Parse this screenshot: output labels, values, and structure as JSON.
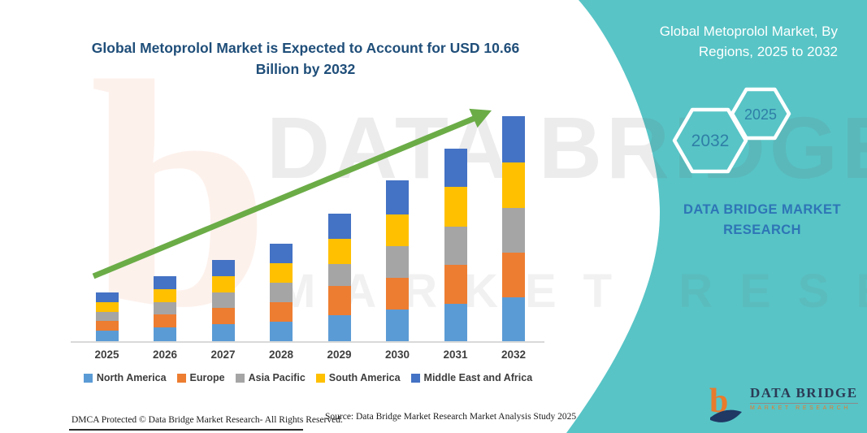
{
  "chart": {
    "title_line1": "Global Metoprolol Market is Expected to Account for USD 10.66",
    "title_line2": "Billion by 2032"
  },
  "chart_data": {
    "type": "bar",
    "stacked": true,
    "title": "Global Metoprolol Market is Expected to Account for USD 10.66 Billion by 2032",
    "unit": "USD billion",
    "categories": [
      "2025",
      "2026",
      "2027",
      "2028",
      "2029",
      "2030",
      "2031",
      "2032"
    ],
    "series": [
      {
        "name": "North America",
        "color": "#5B9BD5",
        "values": [
          0.49,
          0.64,
          0.79,
          0.94,
          1.22,
          1.48,
          1.76,
          2.06
        ]
      },
      {
        "name": "Europe",
        "color": "#ED7D31",
        "values": [
          0.46,
          0.61,
          0.77,
          0.92,
          1.41,
          1.5,
          1.86,
          2.12
        ]
      },
      {
        "name": "Asia Pacific",
        "color": "#A5A5A5",
        "values": [
          0.42,
          0.58,
          0.74,
          0.9,
          1.03,
          1.51,
          1.81,
          2.14
        ]
      },
      {
        "name": "South America",
        "color": "#FFC000",
        "values": [
          0.48,
          0.62,
          0.78,
          0.93,
          1.18,
          1.51,
          1.86,
          2.16
        ]
      },
      {
        "name": "Middle East and Africa",
        "color": "#4472C4",
        "values": [
          0.44,
          0.61,
          0.75,
          0.91,
          1.19,
          1.61,
          1.82,
          2.18
        ]
      }
    ],
    "totals": [
      2.29,
      3.06,
      3.83,
      4.6,
      6.03,
      7.61,
      9.11,
      10.66
    ],
    "xlabel": "",
    "ylabel": "",
    "ylim": [
      0,
      11
    ],
    "grid": false,
    "legend_position": "bottom",
    "annotations": [
      "green upward trend arrow across bar tops"
    ]
  },
  "sidebar": {
    "heading_line1": "Global Metoprolol Market, By",
    "heading_line2": "Regions, 2025 to 2032",
    "hexagons": [
      {
        "label": "2032"
      },
      {
        "label": "2025"
      }
    ],
    "brand_line1": "DATA BRIDGE MARKET",
    "brand_line2": "RESEARCH",
    "logo": {
      "name": "DATA BRIDGE",
      "subtitle": "MARKET RESEARCH"
    }
  },
  "watermark": {
    "monogram": "b",
    "line1": "DATA BRIDGE",
    "line2": "MARKET RESEARCH"
  },
  "footer": {
    "dmca": "DMCA Protected © Data Bridge Market Research-  All Rights Reserved.",
    "source": "Source: Data Bridge Market Research  Market Analysis Study 2025"
  },
  "colors": {
    "teal_panel": "#58C4C6",
    "title_blue": "#1F4E79",
    "arrow_green": "#6BAC47",
    "hexagon_label": "#2F7FA6",
    "brand_blue": "#2E75B6",
    "logo_navy": "#2B3A55",
    "logo_orange": "#E87B2C",
    "axis_line": "#D9D9D9",
    "tick_label": "#3F3F3F"
  }
}
